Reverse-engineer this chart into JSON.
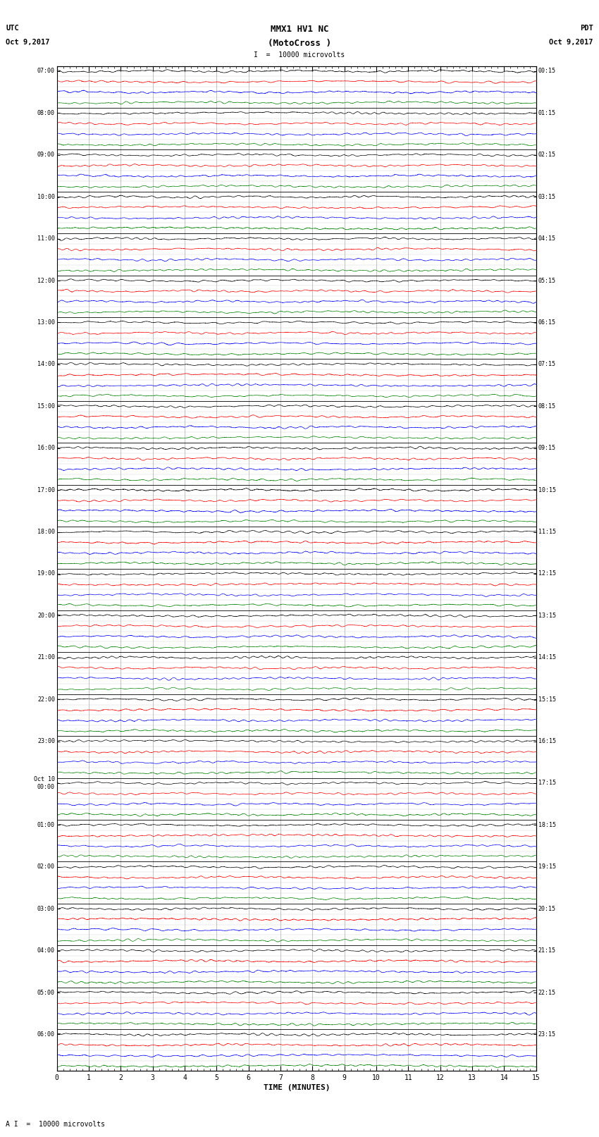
{
  "title_line1": "MMX1 HV1 NC",
  "title_line2": "(MotoCross )",
  "left_label_line1": "UTC",
  "left_label_line2": "Oct 9,2017",
  "right_label_line1": "PDT",
  "right_label_line2": "Oct 9,2017",
  "scale_label": "I  =  10000 microvolts",
  "bottom_label": "A I  =  10000 microvolts",
  "xlabel": "TIME (MINUTES)",
  "utc_times": [
    "07:00",
    "08:00",
    "09:00",
    "10:00",
    "11:00",
    "12:00",
    "13:00",
    "14:00",
    "15:00",
    "16:00",
    "17:00",
    "18:00",
    "19:00",
    "20:00",
    "21:00",
    "22:00",
    "23:00",
    "Oct 10\n00:00",
    "01:00",
    "02:00",
    "03:00",
    "04:00",
    "05:00",
    "06:00"
  ],
  "pdt_times": [
    "00:15",
    "01:15",
    "02:15",
    "03:15",
    "04:15",
    "05:15",
    "06:15",
    "07:15",
    "08:15",
    "09:15",
    "10:15",
    "11:15",
    "12:15",
    "13:15",
    "14:15",
    "15:15",
    "16:15",
    "17:15",
    "18:15",
    "19:15",
    "20:15",
    "21:15",
    "22:15",
    "23:15"
  ],
  "trace_colors": [
    "black",
    "red",
    "blue",
    "green"
  ],
  "n_hours": 24,
  "traces_per_hour": 4,
  "minutes": 15,
  "background_color": "white",
  "trace_lw": 0.45,
  "grid_color": "#888888",
  "grid_lw": 0.5,
  "fig_width": 8.5,
  "fig_height": 16.13,
  "dpi": 100
}
